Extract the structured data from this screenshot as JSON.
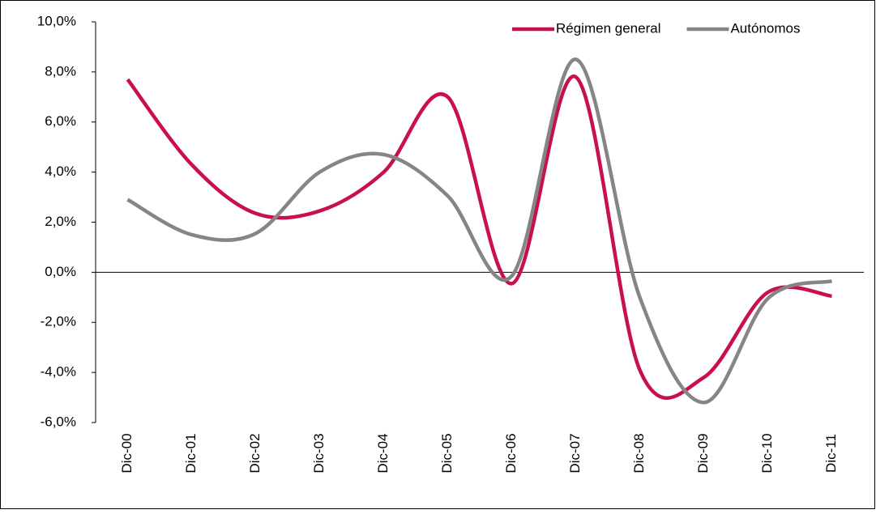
{
  "chart_data": {
    "type": "line",
    "categories": [
      "Dic-00",
      "Dic-01",
      "Dic-02",
      "Dic-03",
      "Dic-04",
      "Dic-05",
      "Dic-06",
      "Dic-07",
      "Dic-08",
      "Dic-09",
      "Dic-10",
      "Dic-11"
    ],
    "series": [
      {
        "name": "Régimen general",
        "color": "#c8104a",
        "values": [
          7.7,
          4.3,
          2.35,
          2.45,
          4.0,
          7.0,
          -0.45,
          7.8,
          -3.9,
          -4.2,
          -0.8,
          -0.95
        ]
      },
      {
        "name": "Autónomos",
        "color": "#858585",
        "values": [
          2.9,
          1.5,
          1.55,
          4.0,
          4.7,
          3.05,
          -0.15,
          8.5,
          -1.0,
          -5.2,
          -1.05,
          -0.35
        ]
      }
    ],
    "ylim": [
      -6,
      10
    ],
    "yticks": [
      {
        "value": -6,
        "label": "-6,0%"
      },
      {
        "value": -4,
        "label": "-4,0%"
      },
      {
        "value": -2,
        "label": "-2,0%"
      },
      {
        "value": 0,
        "label": "0,0%"
      },
      {
        "value": 2,
        "label": "2,0%"
      },
      {
        "value": 4,
        "label": "4,0%"
      },
      {
        "value": 6,
        "label": "6,0%"
      },
      {
        "value": 8,
        "label": "8,0%"
      },
      {
        "value": 10,
        "label": "10,0%"
      }
    ],
    "smooth": true,
    "legend": "top-right"
  }
}
